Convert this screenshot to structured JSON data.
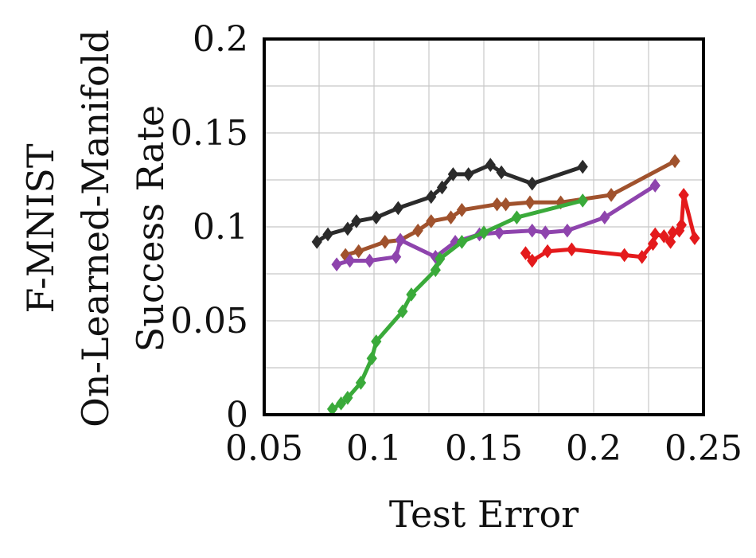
{
  "chart_data": {
    "type": "line",
    "title": "",
    "xlabel": "Test Error",
    "ylabel_lines": [
      "F-MNIST",
      "On-Learned-Manifold",
      "Success Rate"
    ],
    "xlim": [
      0.05,
      0.25
    ],
    "ylim": [
      0,
      0.2
    ],
    "xticks": [
      0.05,
      0.1,
      0.15,
      0.2,
      0.25
    ],
    "xtick_labels": [
      "0.05",
      "0.1",
      "0.15",
      "0.2",
      "0.25"
    ],
    "yticks": [
      0,
      0.05,
      0.1,
      0.15,
      0.2
    ],
    "ytick_labels": [
      "0",
      "0.05",
      "0.1",
      "0.15",
      "0.2"
    ],
    "grid": true,
    "marker": "diamond",
    "series": [
      {
        "color": "#2b2b2b",
        "points": [
          [
            0.074,
            0.092
          ],
          [
            0.079,
            0.096
          ],
          [
            0.088,
            0.099
          ],
          [
            0.092,
            0.103
          ],
          [
            0.101,
            0.105
          ],
          [
            0.111,
            0.11
          ],
          [
            0.126,
            0.116
          ],
          [
            0.131,
            0.121
          ],
          [
            0.136,
            0.128
          ],
          [
            0.143,
            0.128
          ],
          [
            0.153,
            0.133
          ],
          [
            0.158,
            0.129
          ],
          [
            0.172,
            0.123
          ],
          [
            0.195,
            0.132
          ]
        ]
      },
      {
        "color": "#a0522d",
        "points": [
          [
            0.087,
            0.085
          ],
          [
            0.093,
            0.087
          ],
          [
            0.105,
            0.092
          ],
          [
            0.112,
            0.093
          ],
          [
            0.12,
            0.098
          ],
          [
            0.126,
            0.103
          ],
          [
            0.135,
            0.105
          ],
          [
            0.14,
            0.109
          ],
          [
            0.156,
            0.112
          ],
          [
            0.16,
            0.112
          ],
          [
            0.171,
            0.113
          ],
          [
            0.185,
            0.113
          ],
          [
            0.208,
            0.117
          ],
          [
            0.237,
            0.135
          ]
        ]
      },
      {
        "color": "#8e44ad",
        "points": [
          [
            0.083,
            0.08
          ],
          [
            0.089,
            0.082
          ],
          [
            0.098,
            0.082
          ],
          [
            0.11,
            0.084
          ],
          [
            0.112,
            0.093
          ],
          [
            0.128,
            0.084
          ],
          [
            0.137,
            0.092
          ],
          [
            0.148,
            0.096
          ],
          [
            0.157,
            0.097
          ],
          [
            0.172,
            0.098
          ],
          [
            0.178,
            0.097
          ],
          [
            0.188,
            0.098
          ],
          [
            0.205,
            0.105
          ],
          [
            0.228,
            0.122
          ]
        ]
      },
      {
        "color": "#3aaa3a",
        "points": [
          [
            0.081,
            0.003
          ],
          [
            0.085,
            0.006
          ],
          [
            0.088,
            0.009
          ],
          [
            0.094,
            0.017
          ],
          [
            0.099,
            0.03
          ],
          [
            0.101,
            0.039
          ],
          [
            0.113,
            0.055
          ],
          [
            0.117,
            0.064
          ],
          [
            0.128,
            0.077
          ],
          [
            0.13,
            0.083
          ],
          [
            0.14,
            0.092
          ],
          [
            0.15,
            0.097
          ],
          [
            0.165,
            0.105
          ],
          [
            0.195,
            0.114
          ]
        ]
      },
      {
        "color": "#e41a1c",
        "points": [
          [
            0.169,
            0.086
          ],
          [
            0.172,
            0.082
          ],
          [
            0.179,
            0.087
          ],
          [
            0.19,
            0.088
          ],
          [
            0.214,
            0.085
          ],
          [
            0.222,
            0.084
          ],
          [
            0.227,
            0.091
          ],
          [
            0.228,
            0.096
          ],
          [
            0.232,
            0.095
          ],
          [
            0.235,
            0.092
          ],
          [
            0.236,
            0.097
          ],
          [
            0.239,
            0.098
          ],
          [
            0.24,
            0.101
          ],
          [
            0.241,
            0.117
          ],
          [
            0.246,
            0.094
          ]
        ]
      }
    ]
  }
}
